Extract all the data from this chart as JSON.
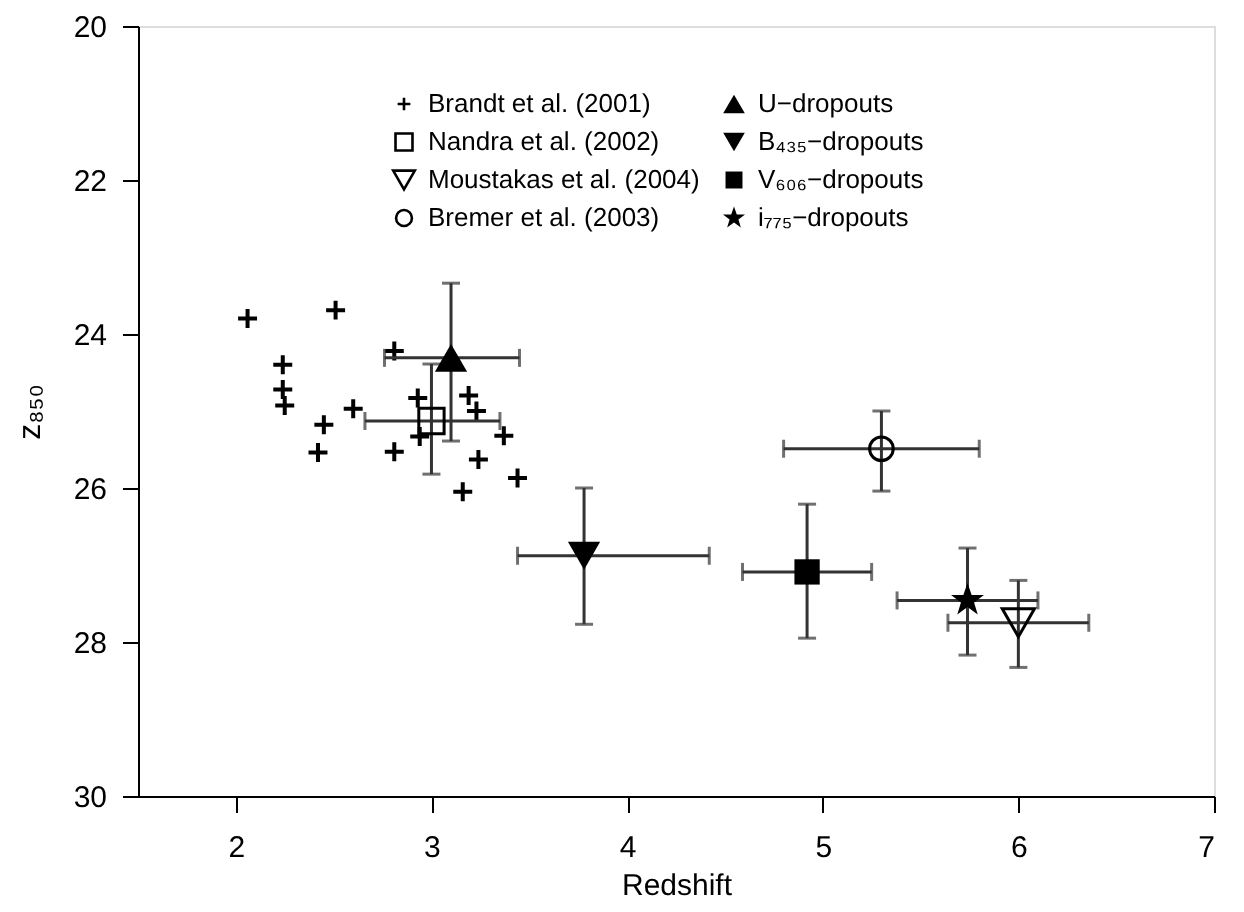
{
  "chart_data": {
    "type": "scatter",
    "xlabel": "Redshift",
    "ylabel": "z₈₅₀",
    "xlim": [
      1.5,
      7
    ],
    "xticks": [
      2,
      3,
      4,
      5,
      6,
      7
    ],
    "ylim": [
      30,
      20
    ],
    "yticks": [
      20,
      22,
      24,
      26,
      28,
      30
    ],
    "grid": false,
    "legend": "top",
    "series": [
      {
        "name": "Brandt et al. (2001)",
        "color": "#000000",
        "marker": "cross",
        "x": [
          2.06,
          2.51,
          2.81,
          2.24,
          2.24,
          2.25,
          2.6,
          2.45,
          2.42,
          2.81,
          2.93,
          3.19,
          3.23,
          3.37,
          3.24,
          3.16,
          3.44,
          2.94
        ],
        "values": [
          23.8,
          23.69,
          24.22,
          24.4,
          24.72,
          24.93,
          24.97,
          25.18,
          25.54,
          25.53,
          24.83,
          24.8,
          25.0,
          25.32,
          25.63,
          26.05,
          25.87,
          25.33
        ]
      },
      {
        "name": "Nandra et al. (2002)",
        "color": null,
        "marker": "square",
        "x": [
          3.0
        ],
        "values": [
          25.13
        ],
        "errors": [
          [
            24.39,
            25.82
          ]
        ],
        "xerrors": [
          [
            2.66,
            3.35
          ]
        ]
      },
      {
        "name": "Moustakas et al. (2004)",
        "color": null,
        "marker": "triangle-down",
        "x": [
          6.0
        ],
        "values": [
          27.75
        ],
        "errors": [
          [
            27.2,
            28.33
          ]
        ],
        "xerrors": [
          [
            5.64,
            6.36
          ]
        ]
      },
      {
        "name": "Bremer et al. (2003)",
        "color": null,
        "marker": "circle",
        "x": [
          5.3
        ],
        "values": [
          25.49
        ],
        "errors": [
          [
            25.0,
            26.04
          ]
        ],
        "xerrors": [
          [
            4.8,
            5.8
          ]
        ]
      },
      {
        "name": "U−dropouts",
        "color": "#000000",
        "marker": "triangle",
        "x": [
          3.1
        ],
        "values": [
          24.31
        ],
        "errors": [
          [
            23.34,
            25.39
          ]
        ],
        "xerrors": [
          [
            2.76,
            3.45
          ]
        ]
      },
      {
        "name": "B₄₃₅−dropouts",
        "color": "#000000",
        "marker": "triangle-down",
        "x": [
          3.78
        ],
        "values": [
          26.88
        ],
        "errors": [
          [
            26.0,
            27.77
          ]
        ],
        "xerrors": [
          [
            3.44,
            4.42
          ]
        ]
      },
      {
        "name": "V₆₀₆−dropouts",
        "color": "#000000",
        "marker": "square",
        "x": [
          4.92
        ],
        "values": [
          27.09
        ],
        "errors": [
          [
            26.21,
            27.95
          ]
        ],
        "xerrors": [
          [
            4.59,
            5.25
          ]
        ]
      },
      {
        "name": "i₇₇₅−dropouts",
        "color": "#000000",
        "marker": "star",
        "x": [
          5.74
        ],
        "values": [
          27.46
        ],
        "errors": [
          [
            26.78,
            28.17
          ]
        ],
        "xerrors": [
          [
            5.38,
            6.1
          ]
        ]
      }
    ]
  }
}
